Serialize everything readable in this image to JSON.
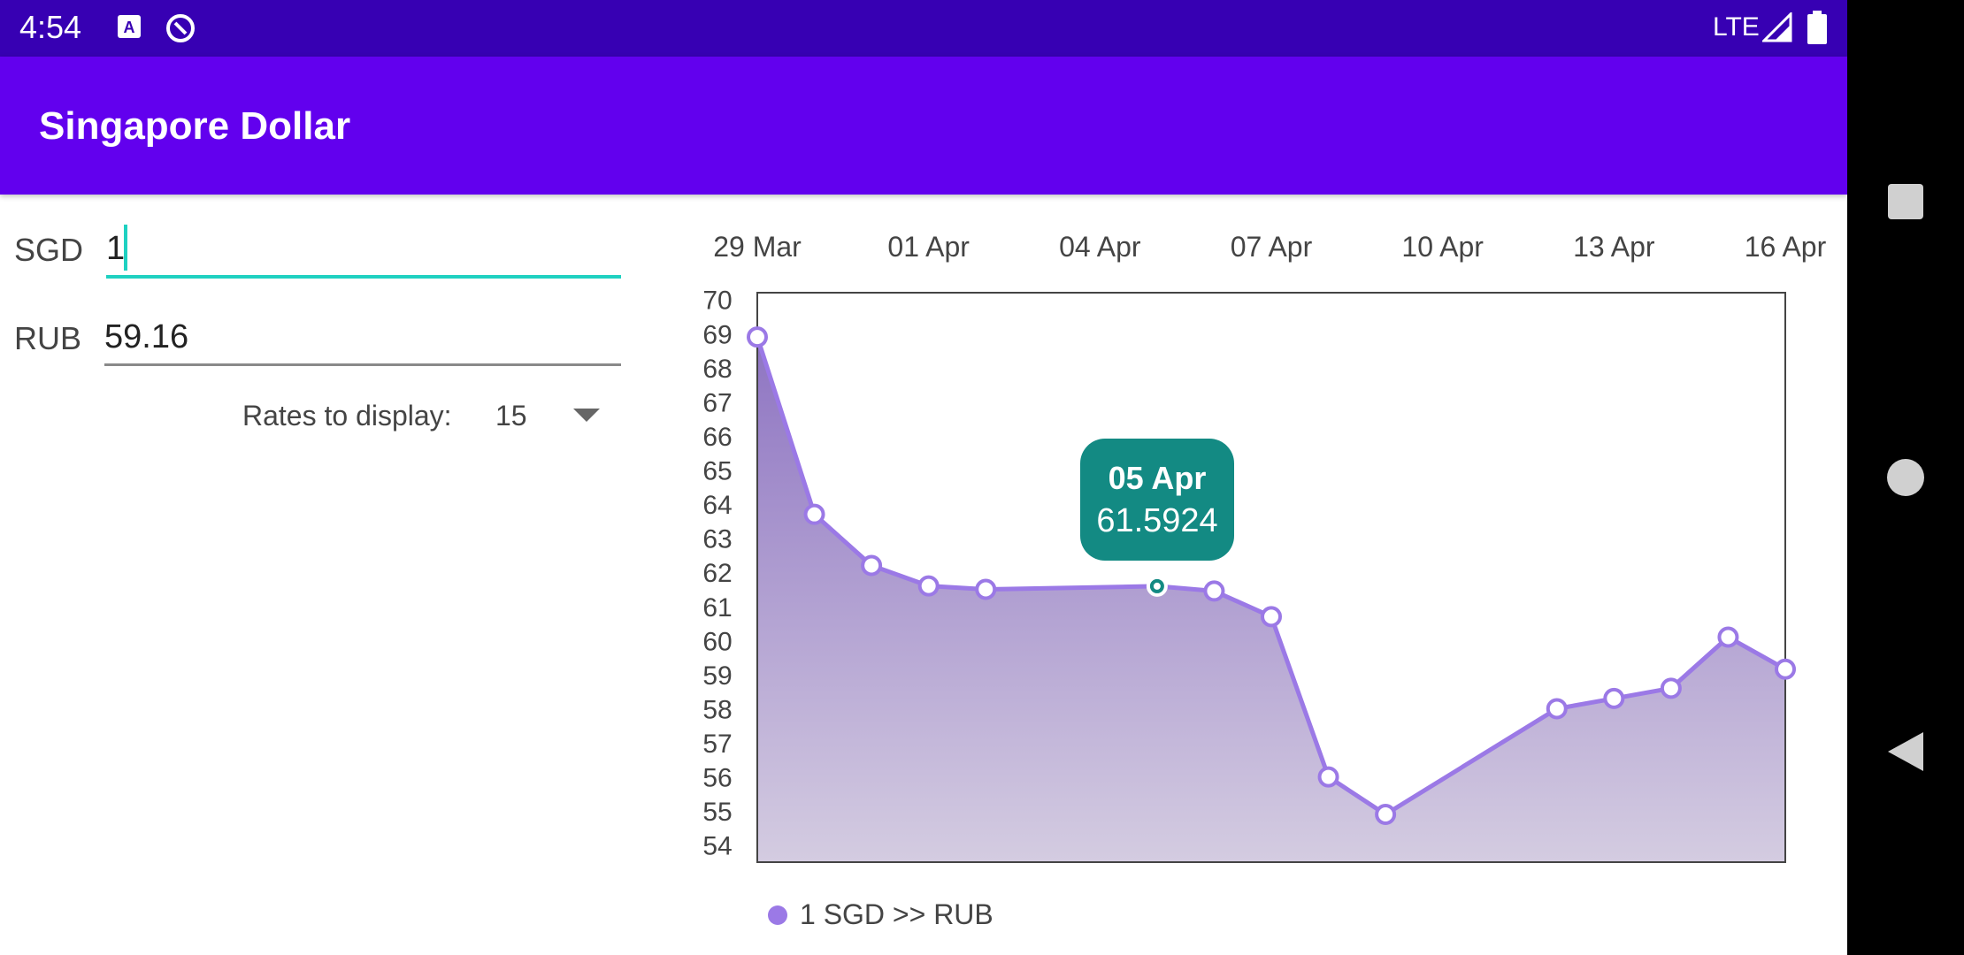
{
  "status_bar": {
    "time": "4:54",
    "network": "LTE"
  },
  "app_bar": {
    "title": "Singapore Dollar"
  },
  "converter": {
    "from_currency": "SGD",
    "from_value": "1",
    "to_currency": "RUB",
    "to_value": "59.16",
    "rates_label": "Rates to display:",
    "rates_selected": "15"
  },
  "chart_data": {
    "type": "area",
    "x_tick_labels": [
      "29 Mar",
      "01 Apr",
      "04 Apr",
      "07 Apr",
      "10 Apr",
      "13 Apr",
      "16 Apr"
    ],
    "y_ticks": [
      54,
      55,
      56,
      57,
      58,
      59,
      60,
      61,
      62,
      63,
      64,
      65,
      66,
      67,
      68,
      69,
      70
    ],
    "ylim": [
      53.5,
      70.2
    ],
    "x_day_range": [
      0,
      18
    ],
    "series": [
      {
        "name": "1 SGD  >>  RUB",
        "color": "#9b79e6",
        "points": [
          {
            "day": 0,
            "value": 68.9
          },
          {
            "day": 1,
            "value": 63.7
          },
          {
            "day": 2,
            "value": 62.2
          },
          {
            "day": 3,
            "value": 61.6
          },
          {
            "day": 4,
            "value": 61.5
          },
          {
            "day": 7,
            "value": 61.5924
          },
          {
            "day": 8,
            "value": 61.45
          },
          {
            "day": 9,
            "value": 60.7
          },
          {
            "day": 10,
            "value": 56.0
          },
          {
            "day": 11,
            "value": 54.9
          },
          {
            "day": 14,
            "value": 58.0
          },
          {
            "day": 15,
            "value": 58.3
          },
          {
            "day": 16,
            "value": 58.6
          },
          {
            "day": 17,
            "value": 60.1
          },
          {
            "day": 18,
            "value": 59.16
          }
        ]
      }
    ],
    "highlight": {
      "index": 5,
      "date": "05 Apr",
      "value": "61.5924"
    },
    "legend": "1 SGD  >>  RUB"
  }
}
